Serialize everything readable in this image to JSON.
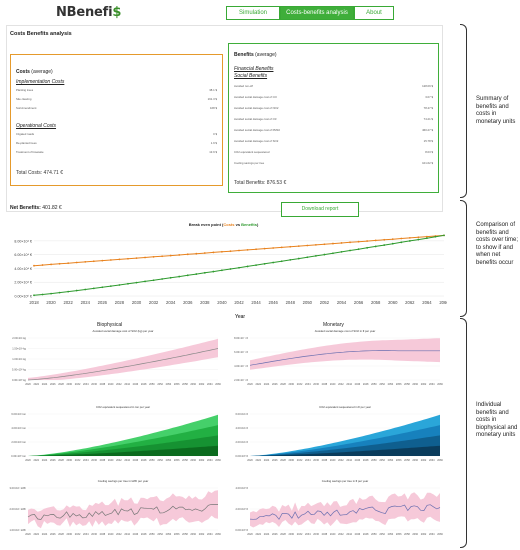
{
  "app": {
    "logo_pre": "NBenefi",
    "logo_post": "$"
  },
  "tabs": [
    "Simulation",
    "Costs-benefits analysis",
    "About"
  ],
  "panel": {
    "title": "Costs Benefits analysis"
  },
  "costs": {
    "heading": "Costs",
    "avg": "(average)",
    "implementation_title": "Implementation Costs",
    "implementation": [
      [
        "Planting trees",
        "38.1 $"
      ],
      [
        "Site clearing",
        "161.3 $"
      ],
      [
        "Soil Amendment",
        "168 $"
      ]
    ],
    "operational_title": "Operational Costs",
    "operational": [
      [
        "Irrigated roads",
        "0 $"
      ],
      [
        "Re-planted trees",
        "1.9 $"
      ],
      [
        "Treatment of biowaste",
        "13.9 $"
      ]
    ],
    "total": "Total Costs: 474.71 €"
  },
  "benefits": {
    "heading": "Benefits",
    "avg": "(average)",
    "financial_title": "Financial Benefits",
    "social_title": "Social Benefits",
    "rows": [
      [
        "Avoided run-off",
        "128.09 $"
      ],
      [
        "Avoided social damage cost of CO",
        "3.07 $"
      ],
      [
        "Avoided social damage cost of NO2",
        "78.47 $"
      ],
      [
        "Avoided social damage cost of O3",
        "74.21 $"
      ],
      [
        "Avoided social damage cost of PM10",
        "460.27 $"
      ],
      [
        "Avoided social damage cost of SO2",
        "15.78 $"
      ],
      [
        "CO2 equivalent sequestered",
        "8.03 $"
      ],
      [
        "Cooling savings per tree",
        "101.62 $"
      ]
    ],
    "total": "Total Benefits: 876.53 €"
  },
  "net": {
    "label": "Net Benefits:",
    "value": "401.82 €"
  },
  "download": "Download report",
  "break_even": {
    "title_pre": "Break even point (",
    "costs": "Costs",
    "vs": " vs ",
    "benefits": "Benefits",
    "title_post": ")",
    "xlabel": "Year"
  },
  "column_titles": {
    "biophysical": "Biophysical",
    "monetary": "Monetary"
  },
  "mini_titles": {
    "bio1": "Avoided social damage cost of SO2 (kg) per year",
    "mon1": "Avoided social damage cost of SO2 in € per year",
    "bio2": "CO2 equivalent sequestered in ton per year",
    "mon2": "CO2 equivalent sequestered in € per year",
    "bio3": "Cooling savings per tree in kWh per year",
    "mon3": "Cooling savings per tree in € per year"
  },
  "mini_ylabels": {
    "bio1": [
      "2.00×10¹ kg",
      "1.50×10¹ kg",
      "1.00×10¹ kg",
      "5.00×10⁰ kg",
      "0.00×10⁰ kg"
    ],
    "mon1": [
      "8.00×10⁻¹ €",
      "6.00×10⁻¹ €",
      "4.00×10⁻¹ €",
      "2.00×10⁻¹ €"
    ],
    "bio2": [
      "6.00×10² ton",
      "4.00×10² ton",
      "2.00×10² ton",
      "0.00×10⁰ ton"
    ],
    "mon2": [
      "6.00×10¹ €",
      "4.00×10¹ €",
      "2.00×10¹ €",
      "0.00×10⁰ €"
    ],
    "bio3": [
      "3.00×10⁴ kWh",
      "2.00×10⁴ kWh",
      "1.00×10⁴ kWh"
    ],
    "mon3": [
      "4.00×10³ €",
      "2.00×10³ €",
      "0.00×10⁰ €"
    ]
  },
  "annotations": {
    "a1": "Summary of benefits and costs in monetary units",
    "a2": "Comparison of benefits and costs over time; to show if and when net benefits occur",
    "a3": "Individual benefits and costs in biophysical and monetary units"
  },
  "chart_data": [
    {
      "type": "line",
      "title": "Break even point (Costs vs Benefits)",
      "xlabel": "Year",
      "x": [
        2018,
        2019,
        2020,
        2021,
        2022,
        2023,
        2024,
        2025,
        2026,
        2027,
        2028,
        2029,
        2030,
        2031,
        2032,
        2033,
        2034,
        2035,
        2036,
        2037,
        2038,
        2039,
        2040,
        2041,
        2042,
        2043,
        2044,
        2045,
        2046,
        2047,
        2048,
        2049,
        2050,
        2051,
        2052,
        2053,
        2054,
        2055,
        2056,
        2057,
        2058,
        2059,
        2060,
        2061,
        2062,
        2063,
        2064,
        2065,
        2066
      ],
      "xticks": [
        2018,
        2020,
        2022,
        2024,
        2026,
        2028,
        2030,
        2032,
        2034,
        2036,
        2038,
        2040,
        2042,
        2044,
        2046,
        2048,
        2050,
        2052,
        2054,
        2056,
        2058,
        2060,
        2062,
        2064,
        2066
      ],
      "yticks": [
        "0.00×10⁰ €",
        "2.00×10⁴ €",
        "4.00×10⁴ €",
        "6.00×10⁴ €",
        "8.00×10⁴ €"
      ],
      "ylim": [
        0,
        90000
      ],
      "series": [
        {
          "name": "Costs",
          "color": "#e8821e",
          "start": 44000,
          "end": 88000
        },
        {
          "name": "Benefits",
          "color": "#2e9a2e",
          "start": 1000,
          "end": 88000
        }
      ]
    }
  ],
  "colors": {
    "accent": "#3fae3a",
    "orange": "#e59a2c",
    "pink": "#f6c9d9",
    "blue": "#2aa6d9",
    "green": "#2fc04f"
  }
}
